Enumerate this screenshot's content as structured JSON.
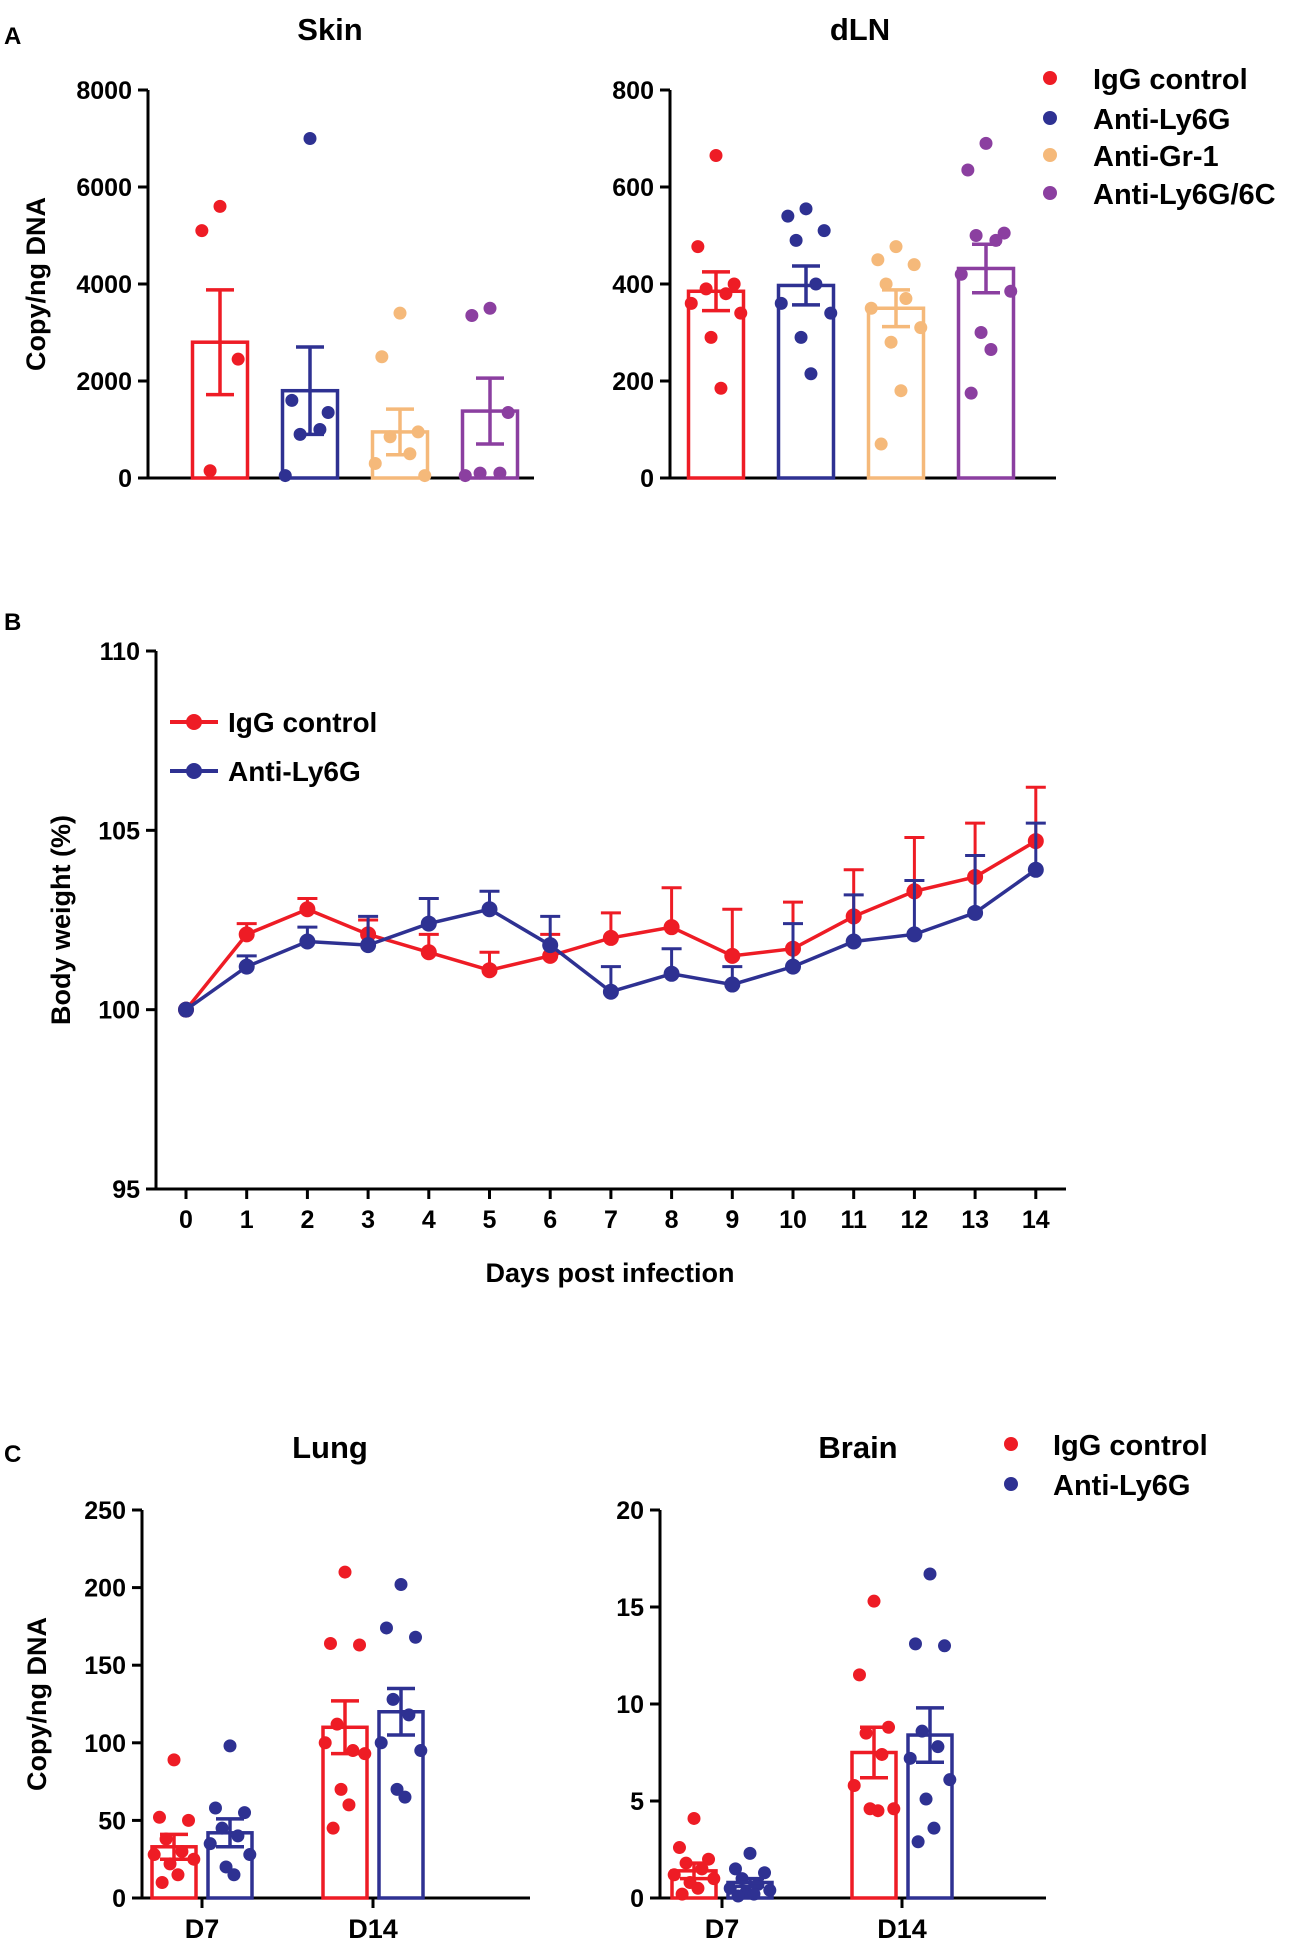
{
  "colors": {
    "igg": "#ee1c25",
    "ly6g": "#2e3192",
    "gr1": "#f5b97a",
    "ly6g6c": "#8b3fa0",
    "axis": "#000000"
  },
  "panel_labels": {
    "a": "A",
    "b": "B",
    "c": "C"
  },
  "legend_a": {
    "labels": [
      "IgG control",
      "Anti-Ly6G",
      "Anti-Gr-1",
      "Anti-Ly6G/6C"
    ],
    "colors": [
      "#ee1c25",
      "#2e3192",
      "#f5b97a",
      "#8b3fa0"
    ]
  },
  "legend_b": {
    "labels": [
      "IgG control",
      "Anti-Ly6G"
    ],
    "colors": [
      "#ee1c25",
      "#2e3192"
    ]
  },
  "legend_c": {
    "labels": [
      "IgG control",
      "Anti-Ly6G"
    ],
    "colors": [
      "#ee1c25",
      "#2e3192"
    ]
  },
  "chart_data": [
    {
      "id": "skin",
      "type": "bar",
      "title": "Skin",
      "ylabel": "Copy/ng DNA",
      "ylim": [
        0,
        8000
      ],
      "yticks": [
        0,
        2000,
        4000,
        6000,
        8000
      ],
      "series": [
        {
          "name": "IgG control",
          "color": "#ee1c25",
          "mean": 2800,
          "sem": 1080,
          "points": [
            5600,
            5100,
            2450,
            150
          ]
        },
        {
          "name": "Anti-Ly6G",
          "color": "#2e3192",
          "mean": 1800,
          "sem": 900,
          "points": [
            7000,
            1600,
            1350,
            900,
            1000,
            50
          ]
        },
        {
          "name": "Anti-Gr-1",
          "color": "#f5b97a",
          "mean": 950,
          "sem": 470,
          "points": [
            3400,
            2500,
            950,
            850,
            500,
            300,
            50
          ]
        },
        {
          "name": "Anti-Ly6G/6C",
          "color": "#8b3fa0",
          "mean": 1380,
          "sem": 680,
          "points": [
            3500,
            3350,
            1350,
            100,
            100,
            50
          ]
        }
      ]
    },
    {
      "id": "dln",
      "type": "bar",
      "title": "dLN",
      "ylabel": "",
      "ylim": [
        0,
        800
      ],
      "yticks": [
        0,
        200,
        400,
        600,
        800
      ],
      "series": [
        {
          "name": "IgG control",
          "color": "#ee1c25",
          "mean": 385,
          "sem": 40,
          "points": [
            665,
            477,
            400,
            390,
            380,
            360,
            340,
            290,
            185
          ]
        },
        {
          "name": "Anti-Ly6G",
          "color": "#2e3192",
          "mean": 397,
          "sem": 40,
          "points": [
            555,
            540,
            510,
            490,
            400,
            360,
            340,
            290,
            215
          ]
        },
        {
          "name": "Anti-Gr-1",
          "color": "#f5b97a",
          "mean": 350,
          "sem": 38,
          "points": [
            477,
            450,
            440,
            400,
            370,
            350,
            310,
            280,
            180,
            70
          ]
        },
        {
          "name": "Anti-Ly6G/6C",
          "color": "#8b3fa0",
          "mean": 432,
          "sem": 50,
          "points": [
            690,
            635,
            505,
            500,
            490,
            420,
            385,
            300,
            265,
            175
          ]
        }
      ]
    },
    {
      "id": "body-weight",
      "type": "line",
      "title": "",
      "xlabel": "Days post infection",
      "ylabel": "Body weight (%)",
      "ylim": [
        95,
        110
      ],
      "yticks": [
        95,
        100,
        105,
        110
      ],
      "x": [
        0,
        1,
        2,
        3,
        4,
        5,
        6,
        7,
        8,
        9,
        10,
        11,
        12,
        13,
        14
      ],
      "series": [
        {
          "name": "IgG control",
          "color": "#ee1c25",
          "values": [
            100.0,
            102.1,
            102.8,
            102.1,
            101.6,
            101.1,
            101.5,
            102.0,
            102.3,
            101.5,
            101.7,
            102.6,
            103.3,
            103.7,
            104.7
          ],
          "err": [
            0,
            0.3,
            0.3,
            0.4,
            0.5,
            0.5,
            0.6,
            0.7,
            1.1,
            1.3,
            1.3,
            1.3,
            1.5,
            1.5,
            1.5
          ]
        },
        {
          "name": "Anti-Ly6G",
          "color": "#2e3192",
          "values": [
            100.0,
            101.2,
            101.9,
            101.8,
            102.4,
            102.8,
            101.8,
            100.5,
            101.0,
            100.7,
            101.2,
            101.9,
            102.1,
            102.7,
            103.9
          ],
          "err": [
            0,
            0.3,
            0.4,
            0.8,
            0.7,
            0.5,
            0.8,
            0.7,
            0.7,
            0.5,
            1.2,
            1.3,
            1.5,
            1.6,
            1.3
          ]
        }
      ]
    },
    {
      "id": "lung",
      "type": "bar",
      "title": "Lung",
      "ylabel": "Copy/ng DNA",
      "ylim": [
        0,
        250
      ],
      "yticks": [
        0,
        50,
        100,
        150,
        200,
        250
      ],
      "categories": [
        "D7",
        "D14"
      ],
      "series": [
        {
          "name": "IgG control",
          "color": "#ee1c25",
          "groups": [
            {
              "mean": 33,
              "sem": 8,
              "points": [
                89,
                52,
                50,
                38,
                30,
                28,
                25,
                22,
                15,
                10
              ]
            },
            {
              "mean": 110,
              "sem": 17,
              "points": [
                210,
                164,
                163,
                112,
                95,
                100,
                93,
                70,
                60,
                45
              ]
            }
          ]
        },
        {
          "name": "Anti-Ly6G",
          "color": "#2e3192",
          "groups": [
            {
              "mean": 42,
              "sem": 9,
              "points": [
                98,
                58,
                55,
                45,
                40,
                35,
                28,
                20,
                15
              ]
            },
            {
              "mean": 120,
              "sem": 15,
              "points": [
                202,
                174,
                168,
                128,
                118,
                100,
                95,
                70,
                65
              ]
            }
          ]
        }
      ]
    },
    {
      "id": "brain",
      "type": "bar",
      "title": "Brain",
      "ylabel": "",
      "ylim": [
        0,
        20
      ],
      "yticks": [
        0,
        5,
        10,
        15,
        20
      ],
      "categories": [
        "D7",
        "D14"
      ],
      "series": [
        {
          "name": "IgG control",
          "color": "#ee1c25",
          "groups": [
            {
              "mean": 1.4,
              "sem": 0.4,
              "points": [
                4.1,
                2.6,
                2.0,
                1.8,
                1.5,
                1.2,
                1.0,
                0.8,
                0.5,
                0.2
              ]
            },
            {
              "mean": 7.5,
              "sem": 1.3,
              "points": [
                15.3,
                11.5,
                8.8,
                8.5,
                7.4,
                5.8,
                4.6,
                4.6,
                4.5
              ]
            }
          ]
        },
        {
          "name": "Anti-Ly6G",
          "color": "#2e3192",
          "groups": [
            {
              "mean": 0.8,
              "sem": 0.2,
              "points": [
                2.3,
                1.5,
                1.3,
                1.0,
                0.7,
                0.5,
                0.4,
                0.3,
                0.2,
                0.1
              ]
            },
            {
              "mean": 8.4,
              "sem": 1.4,
              "points": [
                16.7,
                13.1,
                13.0,
                8.6,
                7.8,
                7.2,
                6.1,
                5.1,
                3.6,
                2.9
              ]
            }
          ]
        }
      ]
    }
  ]
}
